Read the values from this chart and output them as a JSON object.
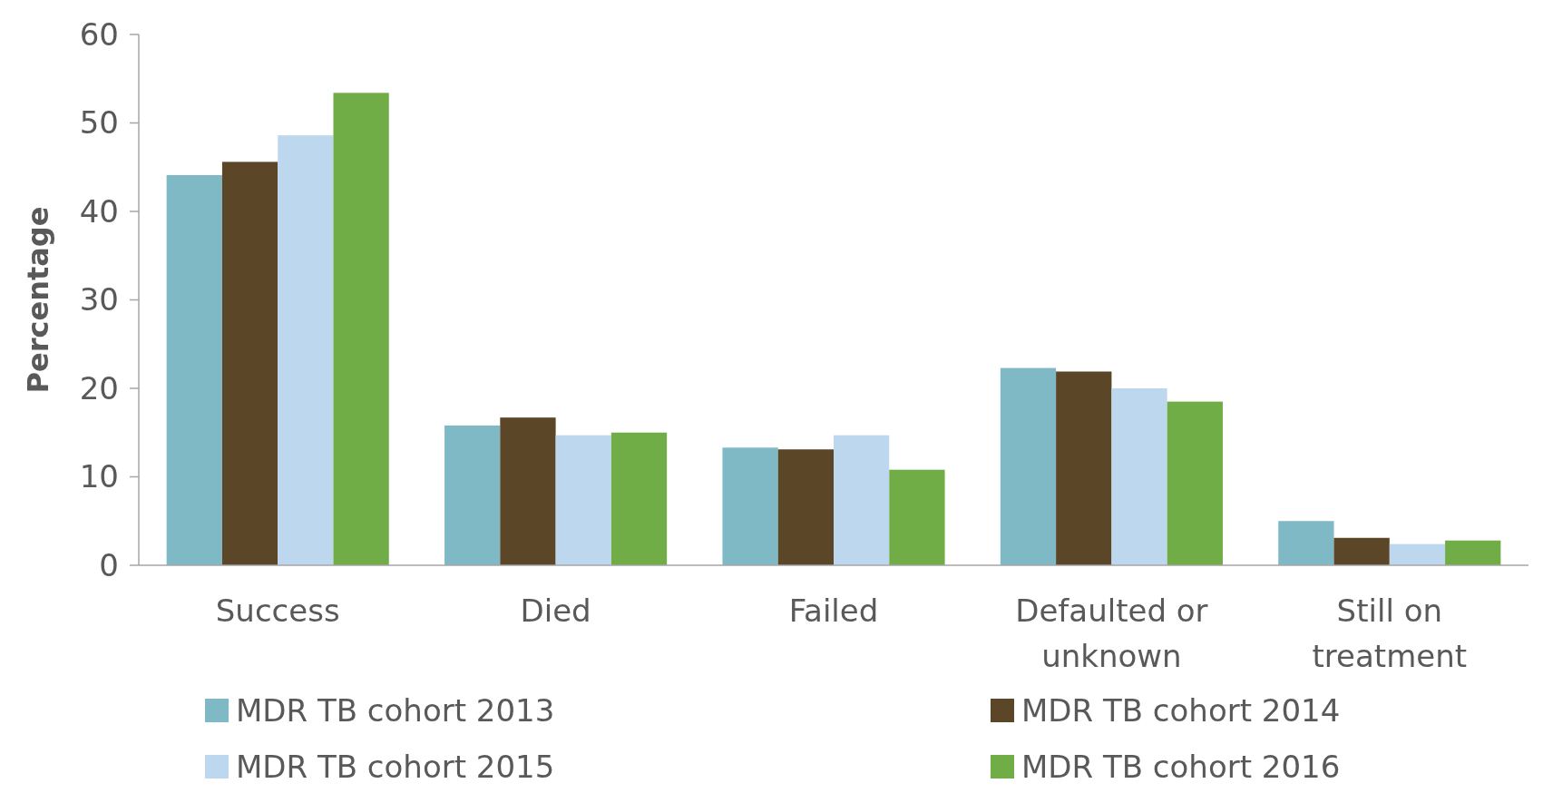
{
  "chart_data": {
    "type": "bar",
    "ylabel": "Percentage",
    "categories": [
      "Success",
      "Died",
      "Failed",
      "Defaulted or unknown",
      "Still on treatment"
    ],
    "series": [
      {
        "name": "MDR TB cohort 2013",
        "color": "#7fb9c6",
        "values": [
          44.1,
          15.8,
          13.3,
          22.3,
          5.0
        ]
      },
      {
        "name": "MDR TB cohort 2014",
        "color": "#5c4628",
        "values": [
          45.6,
          16.7,
          13.1,
          21.9,
          3.1
        ]
      },
      {
        "name": "MDR TB cohort 2015",
        "color": "#bdd7ee",
        "values": [
          48.6,
          14.7,
          14.7,
          20.0,
          2.4
        ]
      },
      {
        "name": "MDR TB cohort 2016",
        "color": "#70ad47",
        "values": [
          53.4,
          15.0,
          10.8,
          18.5,
          2.8
        ]
      }
    ],
    "ylim": [
      0,
      60
    ],
    "yticks": [
      0,
      10,
      20,
      30,
      40,
      50,
      60
    ],
    "grid": false,
    "legend": "bottom"
  }
}
